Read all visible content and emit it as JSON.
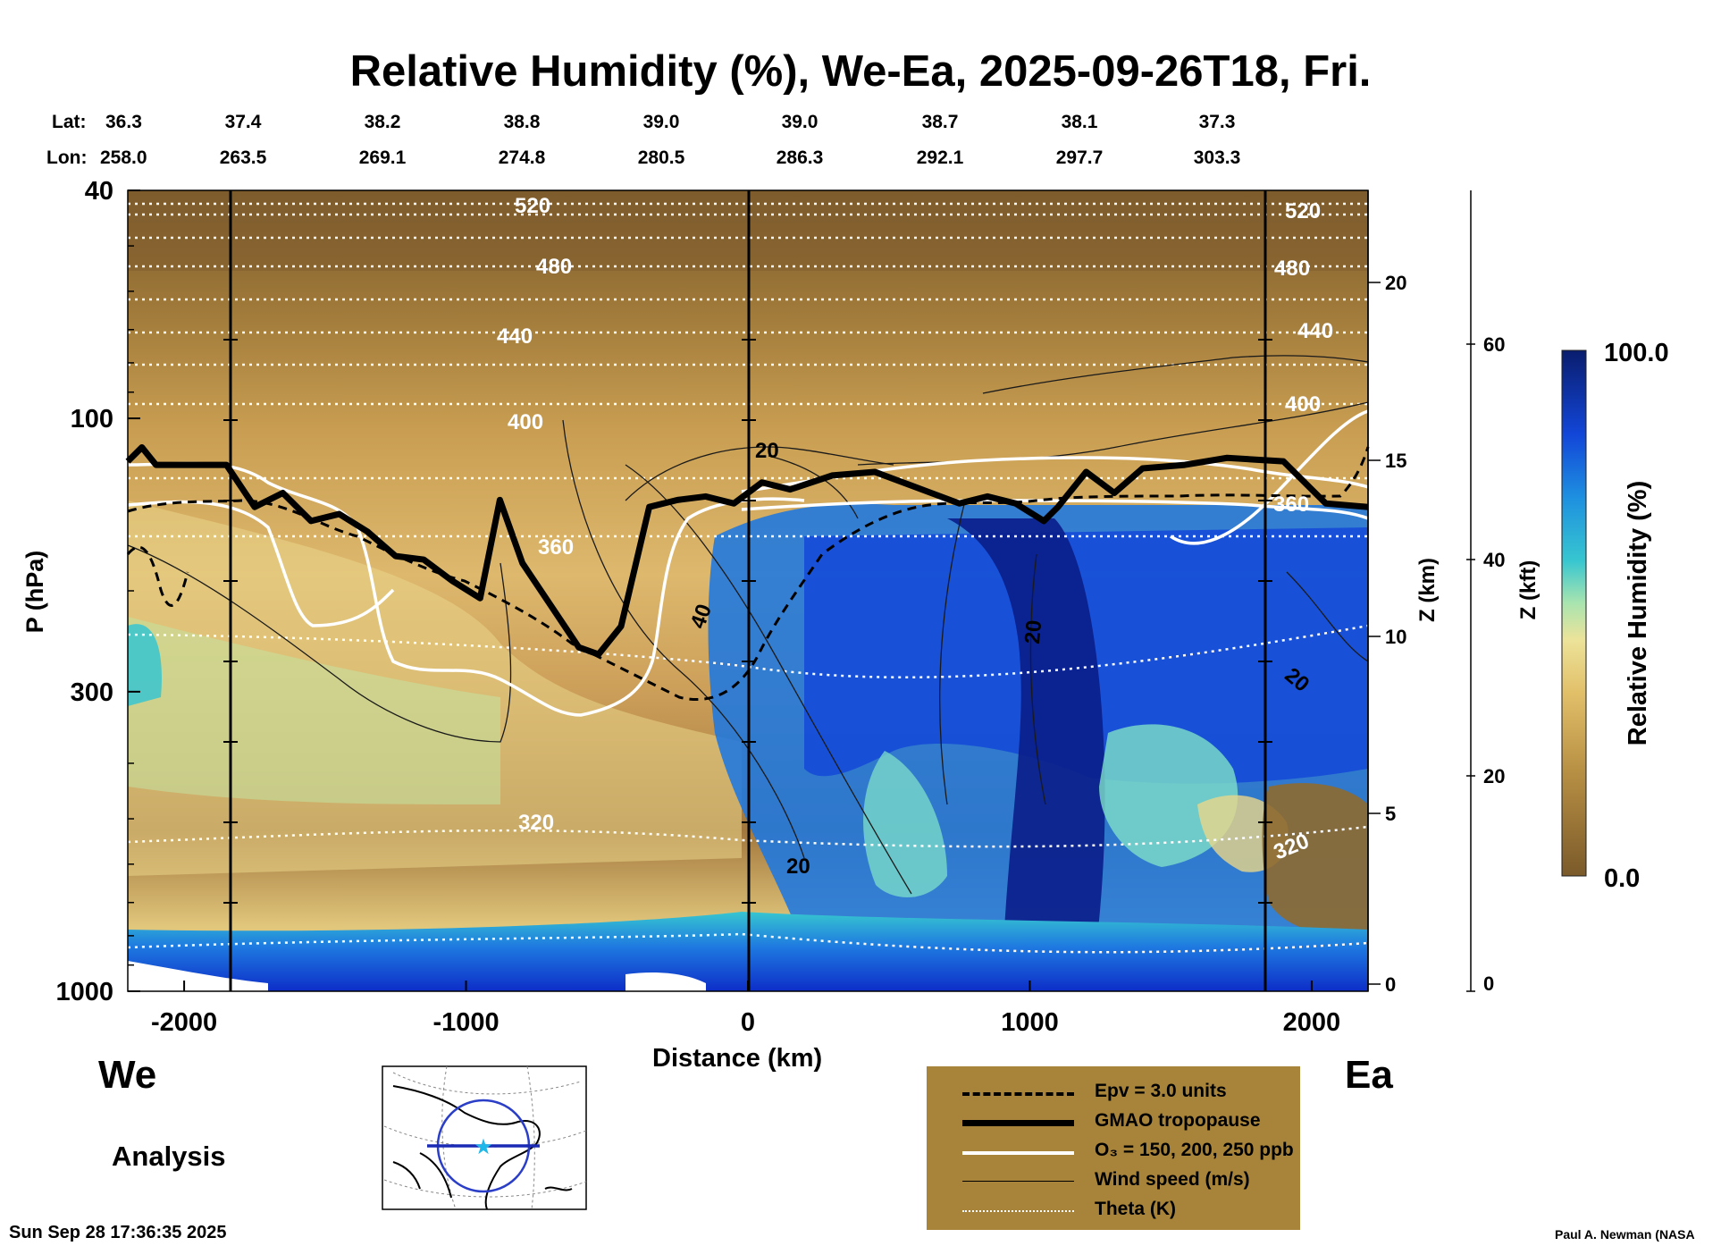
{
  "chart_data": {
    "type": "heatmap",
    "title": "Relative Humidity (%), We-Ea, 2025-09-26T18, Fri.",
    "xlabel": "Distance (km)",
    "ylabel": "P (hPa)",
    "z_km_label": "Z (km)",
    "z_kft_label": "Z (kft)",
    "colorbar_label": "Relative Humidity (%)",
    "colorbar_range": [
      0.0,
      100.0
    ],
    "colorbar_max_label": "100.0",
    "colorbar_min_label": "0.0",
    "xlim": [
      -2200,
      2200
    ],
    "ylim_hpa": [
      1000,
      40
    ],
    "x_ticks": [
      {
        "value": -2000,
        "label": "-2000"
      },
      {
        "value": -1000,
        "label": "-1000"
      },
      {
        "value": 0,
        "label": "0"
      },
      {
        "value": 1000,
        "label": "1000"
      },
      {
        "value": 2000,
        "label": "2000"
      }
    ],
    "p_ticks": [
      {
        "value": 40,
        "label": "40"
      },
      {
        "value": 100,
        "label": "100"
      },
      {
        "value": 300,
        "label": "300"
      },
      {
        "value": 1000,
        "label": "1000"
      }
    ],
    "z_km_ticks": [
      "0",
      "5",
      "10",
      "15",
      "20"
    ],
    "z_kft_ticks": [
      "0",
      "20",
      "40",
      "60"
    ],
    "lat_label": "Lat:",
    "lon_label": "Lon:",
    "lat": [
      "36.3",
      "37.4",
      "38.2",
      "38.8",
      "39.0",
      "39.0",
      "38.7",
      "38.1",
      "37.3"
    ],
    "lon": [
      "258.0",
      "263.5",
      "269.1",
      "274.8",
      "280.5",
      "286.3",
      "292.1",
      "297.7",
      "303.3"
    ],
    "theta_labels": [
      "520",
      "480",
      "440",
      "400",
      "360",
      "320",
      "520",
      "480",
      "440",
      "400",
      "360",
      "320"
    ],
    "wind_labels": [
      "20",
      "40",
      "20",
      "20",
      "20"
    ],
    "tropopause_km": [
      [
        -2200,
        14.9
      ],
      [
        -2150,
        15.3
      ],
      [
        -2100,
        14.8
      ],
      [
        -1850,
        14.8
      ],
      [
        -1800,
        14.2
      ],
      [
        -1750,
        13.6
      ],
      [
        -1650,
        14.0
      ],
      [
        -1550,
        13.2
      ],
      [
        -1450,
        13.4
      ],
      [
        -1350,
        12.9
      ],
      [
        -1250,
        12.2
      ],
      [
        -1150,
        12.1
      ],
      [
        -1050,
        11.5
      ],
      [
        -950,
        11.0
      ],
      [
        -880,
        13.8
      ],
      [
        -800,
        12.0
      ],
      [
        -700,
        10.8
      ],
      [
        -600,
        9.6
      ],
      [
        -530,
        9.4
      ],
      [
        -450,
        10.2
      ],
      [
        -350,
        13.6
      ],
      [
        -250,
        13.8
      ],
      [
        -150,
        13.9
      ],
      [
        -50,
        13.7
      ],
      [
        50,
        14.3
      ],
      [
        150,
        14.1
      ],
      [
        300,
        14.5
      ],
      [
        450,
        14.6
      ],
      [
        550,
        14.3
      ],
      [
        650,
        14.0
      ],
      [
        750,
        13.7
      ],
      [
        850,
        13.9
      ],
      [
        950,
        13.7
      ],
      [
        1050,
        13.2
      ],
      [
        1100,
        13.6
      ],
      [
        1200,
        14.6
      ],
      [
        1300,
        14.0
      ],
      [
        1400,
        14.7
      ],
      [
        1550,
        14.8
      ],
      [
        1700,
        15.0
      ],
      [
        1900,
        14.9
      ],
      [
        2050,
        13.7
      ],
      [
        2200,
        13.6
      ]
    ],
    "legend": [
      {
        "label": "Epv = 3.0 units",
        "style": "dashed"
      },
      {
        "label": "GMAO tropopause",
        "style": "thick"
      },
      {
        "label": "O₃ = 150, 200, 250 ppb",
        "style": "white"
      },
      {
        "label": "Wind speed (m/s)",
        "style": "thin"
      },
      {
        "label": "Theta (K)",
        "style": "dotted"
      }
    ],
    "colors": {
      "dry": "#7b5a2a",
      "mid": "#d9b36a",
      "moist_light": "#8fe0b0",
      "moist": "#1e90e0",
      "saturated": "#0a1d8a",
      "legend_bg": "#a8843a"
    }
  },
  "labels": {
    "west": "We",
    "east": "Ea",
    "analysis": "Analysis",
    "timestamp": "Sun Sep 28 17:36:35 2025",
    "credit": "Paul A. Newman (NASA"
  }
}
